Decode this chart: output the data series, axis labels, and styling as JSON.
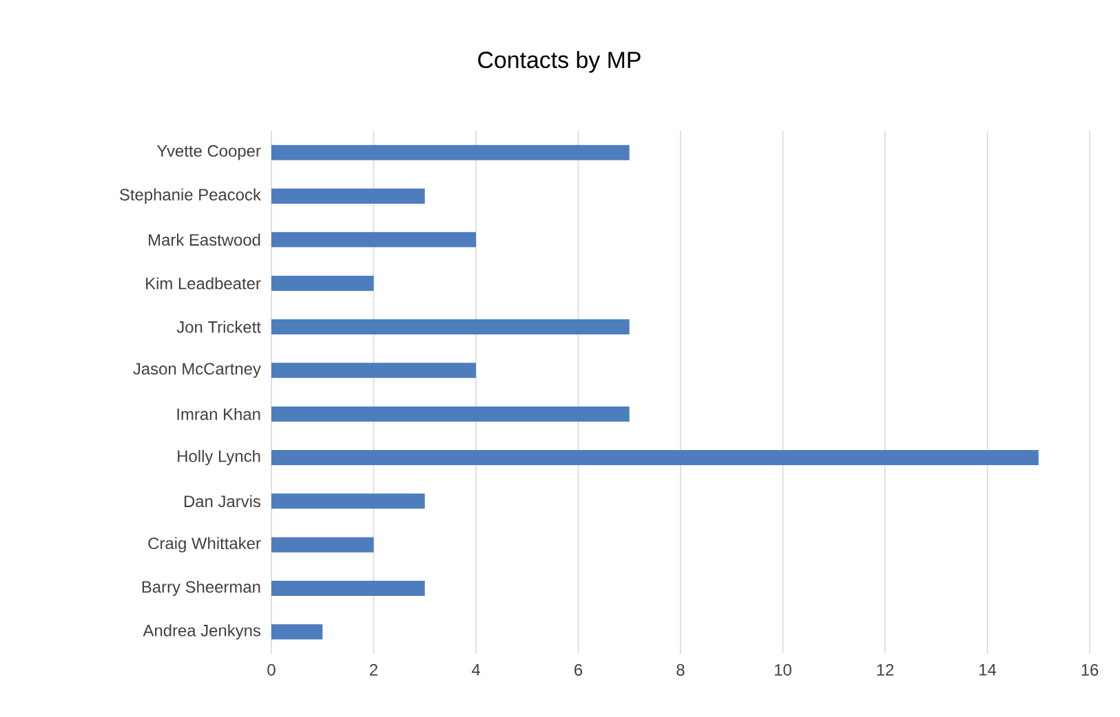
{
  "chart_data": {
    "type": "bar",
    "orientation": "horizontal",
    "title": "Contacts by MP",
    "categories": [
      "Yvette Cooper",
      "Stephanie Peacock",
      "Mark Eastwood",
      "Kim Leadbeater",
      "Jon Trickett",
      "Jason McCartney",
      "Imran Khan",
      "Holly Lynch",
      "Dan Jarvis",
      "Craig Whittaker",
      "Barry Sheerman",
      "Andrea Jenkyns"
    ],
    "values": [
      7,
      3,
      4,
      2,
      7,
      4,
      7,
      15,
      3,
      2,
      3,
      1
    ],
    "color": "#4e7dbd",
    "xlim": [
      0,
      16
    ],
    "xticks": [
      0,
      2,
      4,
      6,
      8,
      10,
      12,
      14,
      16
    ],
    "grid": "x"
  }
}
